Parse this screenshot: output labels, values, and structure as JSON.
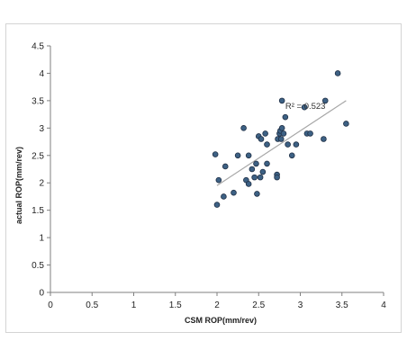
{
  "chart_data": {
    "type": "scatter",
    "xlabel": "CSM ROP(mm/rev)",
    "ylabel": "actual ROP(mm/rev)",
    "xlim": [
      0,
      4
    ],
    "ylim": [
      0,
      4.5
    ],
    "x_ticks": [
      "0",
      "0.5",
      "1",
      "1.5",
      "2",
      "2.5",
      "3",
      "3.5",
      "4"
    ],
    "y_ticks": [
      "0",
      "0.5",
      "1",
      "1.5",
      "2",
      "2.5",
      "3",
      "3.5",
      "4",
      "4.5"
    ],
    "grid": false,
    "annotation": "R² = 0.523",
    "trendline": {
      "x": [
        2.0,
        3.55
      ],
      "y": [
        1.95,
        3.5
      ],
      "color": "#a6a6a6"
    },
    "marker_color": "#3d6184",
    "marker_edge": "#1f2f45",
    "points": [
      {
        "x": 1.98,
        "y": 2.52
      },
      {
        "x": 2.0,
        "y": 1.6
      },
      {
        "x": 2.02,
        "y": 2.05
      },
      {
        "x": 2.08,
        "y": 1.75
      },
      {
        "x": 2.1,
        "y": 2.3
      },
      {
        "x": 2.2,
        "y": 1.82
      },
      {
        "x": 2.25,
        "y": 2.5
      },
      {
        "x": 2.32,
        "y": 3.0
      },
      {
        "x": 2.35,
        "y": 2.05
      },
      {
        "x": 2.38,
        "y": 2.5
      },
      {
        "x": 2.38,
        "y": 1.98
      },
      {
        "x": 2.42,
        "y": 2.25
      },
      {
        "x": 2.45,
        "y": 2.1
      },
      {
        "x": 2.47,
        "y": 2.35
      },
      {
        "x": 2.48,
        "y": 1.8
      },
      {
        "x": 2.5,
        "y": 2.85
      },
      {
        "x": 2.52,
        "y": 2.1
      },
      {
        "x": 2.53,
        "y": 2.8
      },
      {
        "x": 2.55,
        "y": 2.2
      },
      {
        "x": 2.58,
        "y": 2.9
      },
      {
        "x": 2.6,
        "y": 2.35
      },
      {
        "x": 2.6,
        "y": 2.7
      },
      {
        "x": 2.72,
        "y": 2.15
      },
      {
        "x": 2.72,
        "y": 2.1
      },
      {
        "x": 2.73,
        "y": 2.8
      },
      {
        "x": 2.75,
        "y": 2.9
      },
      {
        "x": 2.76,
        "y": 2.95
      },
      {
        "x": 2.77,
        "y": 2.8
      },
      {
        "x": 2.78,
        "y": 3.0
      },
      {
        "x": 2.78,
        "y": 3.5
      },
      {
        "x": 2.8,
        "y": 2.9
      },
      {
        "x": 2.82,
        "y": 3.2
      },
      {
        "x": 2.85,
        "y": 2.7
      },
      {
        "x": 2.9,
        "y": 2.5
      },
      {
        "x": 2.95,
        "y": 2.7
      },
      {
        "x": 3.05,
        "y": 3.38
      },
      {
        "x": 3.08,
        "y": 2.9
      },
      {
        "x": 3.12,
        "y": 2.9
      },
      {
        "x": 3.28,
        "y": 2.8
      },
      {
        "x": 3.3,
        "y": 3.5
      },
      {
        "x": 3.45,
        "y": 4.0
      },
      {
        "x": 3.55,
        "y": 3.08
      }
    ]
  }
}
